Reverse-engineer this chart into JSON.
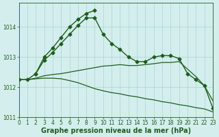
{
  "lines": [
    {
      "x": [
        0,
        1,
        2,
        3,
        4,
        5,
        6,
        7,
        8,
        9,
        10,
        11,
        12,
        13,
        14,
        15,
        16,
        17,
        18,
        19,
        20,
        21,
        22,
        23
      ],
      "y": [
        1012.25,
        1012.25,
        1012.45,
        1012.9,
        1013.15,
        1013.45,
        1013.75,
        1014.05,
        1014.3,
        1014.3,
        1013.75,
        1013.45,
        1013.25,
        1013.0,
        1012.85,
        1012.85,
        1013.0,
        1013.05,
        1013.05,
        1012.95,
        1012.45,
        1012.25,
        1012.05,
        1011.3
      ],
      "marker": "D",
      "markersize": 2.5,
      "linewidth": 1.0,
      "color": "#1e5c1e",
      "linestyle": "-"
    },
    {
      "x": [
        2,
        3,
        4,
        5,
        6,
        7,
        8,
        9
      ],
      "y": [
        1012.45,
        1013.0,
        1013.3,
        1013.65,
        1014.0,
        1014.25,
        1014.45,
        1014.55
      ],
      "marker": "D",
      "markersize": 2.5,
      "linewidth": 1.0,
      "color": "#1e5c1e",
      "linestyle": "-"
    },
    {
      "x": [
        0,
        1,
        2,
        3,
        4,
        5,
        6,
        7,
        8,
        9,
        10,
        11,
        12,
        13,
        14,
        15,
        16,
        17,
        18,
        19,
        20,
        21,
        22,
        23
      ],
      "y": [
        1012.25,
        1012.25,
        1012.3,
        1012.38,
        1012.42,
        1012.45,
        1012.5,
        1012.55,
        1012.6,
        1012.65,
        1012.7,
        1012.72,
        1012.75,
        1012.72,
        1012.72,
        1012.75,
        1012.78,
        1012.82,
        1012.82,
        1012.85,
        1012.6,
        1012.35,
        1012.05,
        1011.55
      ],
      "marker": null,
      "markersize": 0,
      "linewidth": 0.9,
      "color": "#1e5c1e",
      "linestyle": "-"
    },
    {
      "x": [
        0,
        1,
        2,
        3,
        4,
        5,
        6,
        7,
        8,
        9,
        10,
        11,
        12,
        13,
        14,
        15,
        16,
        17,
        18,
        19,
        20,
        21,
        22,
        23
      ],
      "y": [
        1012.25,
        1012.25,
        1012.28,
        1012.3,
        1012.3,
        1012.28,
        1012.22,
        1012.15,
        1012.05,
        1011.95,
        1011.88,
        1011.82,
        1011.78,
        1011.72,
        1011.68,
        1011.62,
        1011.58,
        1011.52,
        1011.48,
        1011.42,
        1011.38,
        1011.32,
        1011.28,
        1011.18
      ],
      "marker": null,
      "markersize": 0,
      "linewidth": 0.9,
      "color": "#1e5c1e",
      "linestyle": "-"
    }
  ],
  "xlim": [
    0,
    23
  ],
  "ylim": [
    1011.0,
    1014.8
  ],
  "yticks": [
    1011,
    1012,
    1013,
    1014
  ],
  "xticks": [
    0,
    1,
    2,
    3,
    4,
    5,
    6,
    7,
    8,
    9,
    10,
    11,
    12,
    13,
    14,
    15,
    16,
    17,
    18,
    19,
    20,
    21,
    22,
    23
  ],
  "xlabel": "Graphe pression niveau de la mer (hPa)",
  "background_color": "#d4eeed",
  "grid_color": "#a8d4d0",
  "line_color": "#1e5c1e",
  "tick_fontsize": 5.5,
  "xlabel_fontsize": 7
}
